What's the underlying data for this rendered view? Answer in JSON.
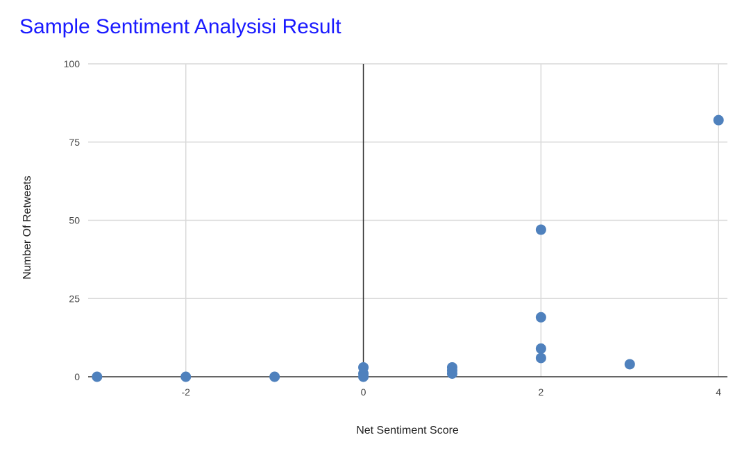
{
  "chart_data": {
    "type": "scatter",
    "title": "Sample Sentiment Analysisi Result",
    "xlabel": "Net Sentiment Score",
    "ylabel": "Number Of Retweets",
    "xlim": [
      -3.1,
      4.1
    ],
    "ylim": [
      0,
      100
    ],
    "x_ticks": [
      -2,
      0,
      2,
      4
    ],
    "y_ticks": [
      0,
      25,
      50,
      75,
      100
    ],
    "grid": true,
    "point_color": "#4f81bd",
    "points": [
      {
        "x": -3,
        "y": 0
      },
      {
        "x": -2,
        "y": 0
      },
      {
        "x": -1,
        "y": 0
      },
      {
        "x": 0,
        "y": 3
      },
      {
        "x": 0,
        "y": 1
      },
      {
        "x": 0,
        "y": 0
      },
      {
        "x": 1,
        "y": 3
      },
      {
        "x": 1,
        "y": 2
      },
      {
        "x": 1,
        "y": 1
      },
      {
        "x": 2,
        "y": 47
      },
      {
        "x": 2,
        "y": 19
      },
      {
        "x": 2,
        "y": 9
      },
      {
        "x": 2,
        "y": 6
      },
      {
        "x": 3,
        "y": 4
      },
      {
        "x": 4,
        "y": 82
      }
    ]
  }
}
